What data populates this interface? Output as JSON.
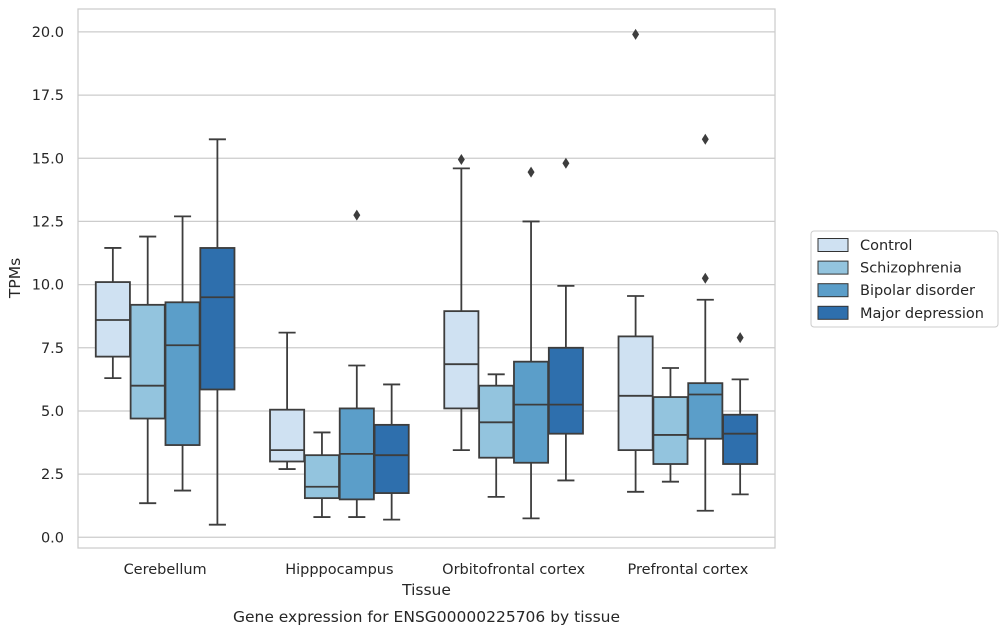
{
  "chart_data": {
    "type": "boxplot",
    "title": "",
    "caption": "Gene expression for ENSG00000225706 by tissue",
    "xlabel": "Tissue",
    "ylabel": "TPMs",
    "ylim": [
      -0.4,
      20.8
    ],
    "yticks": [
      0.0,
      2.5,
      5.0,
      7.5,
      10.0,
      12.5,
      15.0,
      17.5,
      20.0
    ],
    "ytick_labels": [
      "0.0",
      "2.5",
      "5.0",
      "7.5",
      "10.0",
      "12.5",
      "15.0",
      "17.5",
      "20.0"
    ],
    "grid": "horizontal",
    "legend_position": "right",
    "categories": [
      "Cerebellum",
      "Hipppocampus",
      "Orbitofrontal cortex",
      "Prefrontal cortex"
    ],
    "series": [
      {
        "name": "Control",
        "color": "#cfe1f2",
        "boxes": [
          {
            "whisker_low": 6.3,
            "q1": 7.15,
            "median": 8.6,
            "q3": 10.1,
            "whisker_high": 11.45,
            "outliers": []
          },
          {
            "whisker_low": 2.7,
            "q1": 3.0,
            "median": 3.45,
            "q3": 5.05,
            "whisker_high": 8.1,
            "outliers": []
          },
          {
            "whisker_low": 3.45,
            "q1": 5.1,
            "median": 6.85,
            "q3": 8.95,
            "whisker_high": 14.6,
            "outliers": [
              14.95
            ]
          },
          {
            "whisker_low": 1.8,
            "q1": 3.45,
            "median": 5.6,
            "q3": 7.95,
            "whisker_high": 9.55,
            "outliers": [
              19.9
            ]
          }
        ]
      },
      {
        "name": "Schizophrenia",
        "color": "#93c4de",
        "boxes": [
          {
            "whisker_low": 1.35,
            "q1": 4.7,
            "median": 6.0,
            "q3": 9.2,
            "whisker_high": 11.9,
            "outliers": []
          },
          {
            "whisker_low": 0.8,
            "q1": 1.55,
            "median": 2.0,
            "q3": 3.25,
            "whisker_high": 4.15,
            "outliers": []
          },
          {
            "whisker_low": 1.6,
            "q1": 3.15,
            "median": 4.55,
            "q3": 6.0,
            "whisker_high": 6.45,
            "outliers": []
          },
          {
            "whisker_low": 2.2,
            "q1": 2.9,
            "median": 4.05,
            "q3": 5.55,
            "whisker_high": 6.7,
            "outliers": []
          }
        ]
      },
      {
        "name": "Bipolar disorder",
        "color": "#5b9ec9",
        "boxes": [
          {
            "whisker_low": 1.85,
            "q1": 3.65,
            "median": 7.6,
            "q3": 9.3,
            "whisker_high": 12.7,
            "outliers": []
          },
          {
            "whisker_low": 0.8,
            "q1": 1.5,
            "median": 3.3,
            "q3": 5.1,
            "whisker_high": 6.8,
            "outliers": [
              12.75
            ]
          },
          {
            "whisker_low": 0.75,
            "q1": 2.95,
            "median": 5.25,
            "q3": 6.95,
            "whisker_high": 12.5,
            "outliers": [
              14.45
            ]
          },
          {
            "whisker_low": 1.05,
            "q1": 3.9,
            "median": 5.65,
            "q3": 6.1,
            "whisker_high": 9.4,
            "outliers": [
              10.25,
              15.75
            ]
          }
        ]
      },
      {
        "name": "Major depression",
        "color": "#2e6fad",
        "boxes": [
          {
            "whisker_low": 0.5,
            "q1": 5.85,
            "median": 9.5,
            "q3": 11.45,
            "whisker_high": 15.75,
            "outliers": []
          },
          {
            "whisker_low": 0.7,
            "q1": 1.75,
            "median": 3.25,
            "q3": 4.45,
            "whisker_high": 6.05,
            "outliers": []
          },
          {
            "whisker_low": 2.25,
            "q1": 4.1,
            "median": 5.25,
            "q3": 7.5,
            "whisker_high": 9.95,
            "outliers": [
              14.8
            ]
          },
          {
            "whisker_low": 1.7,
            "q1": 2.9,
            "median": 4.1,
            "q3": 4.85,
            "whisker_high": 6.25,
            "outliers": [
              7.9
            ]
          }
        ]
      }
    ]
  }
}
